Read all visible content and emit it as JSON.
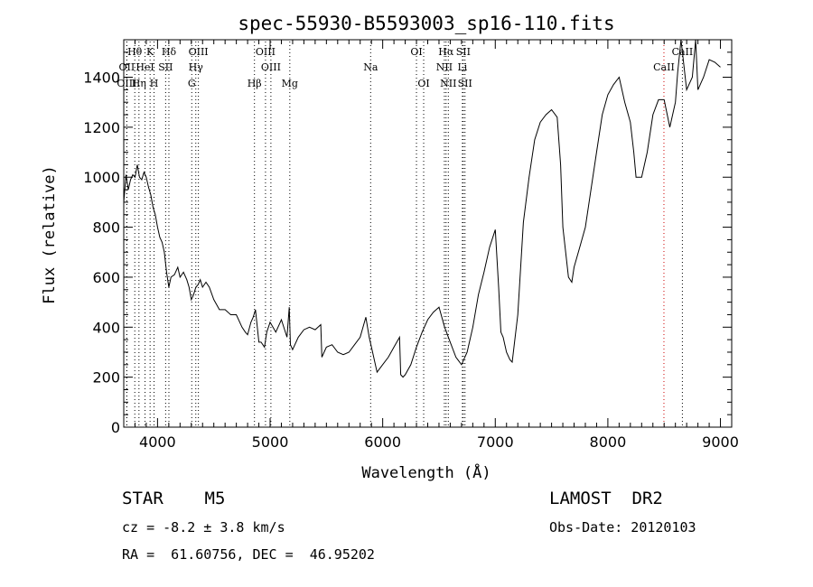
{
  "chart_data": {
    "type": "line",
    "title": "spec-55930-B5593003_sp16-110.fits",
    "xlabel": "Wavelength (Å)",
    "ylabel": "Flux (relative)",
    "xlim": [
      3700,
      9100
    ],
    "ylim": [
      0,
      1550
    ],
    "xticks": [
      4000,
      5000,
      6000,
      7000,
      8000,
      9000
    ],
    "yticks": [
      0,
      200,
      400,
      600,
      800,
      1000,
      1200,
      1400
    ],
    "grid": false,
    "series": [
      {
        "x": [
          3700,
          3720,
          3740,
          3760,
          3780,
          3800,
          3820,
          3840,
          3860,
          3880,
          3900,
          3920,
          3940,
          3960,
          3980,
          4000,
          4020,
          4040,
          4060,
          4080,
          4100,
          4120,
          4150,
          4180,
          4200,
          4230,
          4260,
          4280,
          4300,
          4320,
          4340,
          4360,
          4380,
          4400,
          4430,
          4460,
          4500,
          4550,
          4600,
          4650,
          4700,
          4750,
          4780,
          4800,
          4830,
          4850,
          4870,
          4900,
          4920,
          4950,
          4970,
          5000,
          5050,
          5100,
          5150,
          5170,
          5180,
          5200,
          5250,
          5300,
          5350,
          5400,
          5450,
          5460,
          5500,
          5550,
          5600,
          5650,
          5700,
          5750,
          5800,
          5850,
          5880,
          5900,
          5950,
          6000,
          6050,
          6100,
          6150,
          6160,
          6180,
          6200,
          6250,
          6300,
          6350,
          6400,
          6450,
          6500,
          6550,
          6600,
          6650,
          6700,
          6750,
          6800,
          6850,
          6900,
          6950,
          7000,
          7030,
          7050,
          7070,
          7100,
          7130,
          7150,
          7200,
          7250,
          7300,
          7350,
          7400,
          7450,
          7500,
          7550,
          7580,
          7600,
          7650,
          7680,
          7700,
          7750,
          7800,
          7850,
          7900,
          7950,
          8000,
          8050,
          8100,
          8150,
          8200,
          8230,
          8250,
          8300,
          8350,
          8400,
          8450,
          8500,
          8550,
          8600,
          8620,
          8650,
          8700,
          8750,
          8780,
          8800,
          8850,
          8900,
          8950,
          9000
        ],
        "y": [
          900,
          1010,
          950,
          990,
          1010,
          1000,
          1050,
          1000,
          990,
          1020,
          1000,
          960,
          930,
          880,
          850,
          800,
          760,
          740,
          700,
          620,
          560,
          600,
          610,
          640,
          600,
          620,
          590,
          560,
          510,
          530,
          560,
          570,
          590,
          560,
          580,
          560,
          510,
          470,
          470,
          450,
          450,
          400,
          380,
          370,
          420,
          440,
          470,
          340,
          340,
          320,
          380,
          420,
          380,
          430,
          360,
          480,
          330,
          310,
          360,
          390,
          400,
          390,
          410,
          280,
          320,
          330,
          300,
          290,
          300,
          330,
          360,
          440,
          360,
          320,
          220,
          250,
          280,
          320,
          360,
          210,
          200,
          210,
          250,
          320,
          380,
          430,
          460,
          480,
          400,
          340,
          280,
          250,
          300,
          400,
          530,
          620,
          720,
          790,
          560,
          380,
          360,
          300,
          270,
          260,
          450,
          820,
          1000,
          1150,
          1220,
          1250,
          1270,
          1240,
          1050,
          800,
          600,
          580,
          640,
          720,
          800,
          950,
          1100,
          1250,
          1330,
          1370,
          1400,
          1300,
          1220,
          1100,
          1000,
          1000,
          1100,
          1250,
          1310,
          1310,
          1200,
          1300,
          1420,
          1550,
          1350,
          1400,
          1550,
          1350,
          1400,
          1470,
          1460,
          1440
        ]
      }
    ],
    "lines": [
      {
        "label": "Hθ",
        "x": 3798,
        "row": 0,
        "color": "#000000"
      },
      {
        "label": "K",
        "x": 3934,
        "row": 0,
        "color": "#000000"
      },
      {
        "label": "Hδ",
        "x": 4101,
        "row": 0,
        "color": "#000000"
      },
      {
        "label": "OIII",
        "x": 4363,
        "row": 0,
        "color": "#000000"
      },
      {
        "label": "OIII",
        "x": 4959,
        "row": 0,
        "color": "#000000"
      },
      {
        "label": "OI",
        "x": 6300,
        "row": 0,
        "color": "#000000"
      },
      {
        "label": "Hα",
        "x": 6563,
        "row": 0,
        "color": "#000000"
      },
      {
        "label": "SII",
        "x": 6716,
        "row": 0,
        "color": "#000000"
      },
      {
        "label": "CaII",
        "x": 8662,
        "row": 0,
        "color": "#000000"
      },
      {
        "label": "OII",
        "x": 3727,
        "row": 1,
        "color": "#000000"
      },
      {
        "label": "HeI",
        "x": 3889,
        "row": 1,
        "color": "#000000"
      },
      {
        "label": "SII",
        "x": 4072,
        "row": 1,
        "color": "#000000"
      },
      {
        "label": "Hγ",
        "x": 4340,
        "row": 1,
        "color": "#000000"
      },
      {
        "label": "OIII",
        "x": 5007,
        "row": 1,
        "color": "#000000"
      },
      {
        "label": "Na",
        "x": 5893,
        "row": 1,
        "color": "#000000"
      },
      {
        "label": "NII",
        "x": 6548,
        "row": 1,
        "color": "#000000"
      },
      {
        "label": "Li",
        "x": 6708,
        "row": 1,
        "color": "#000000"
      },
      {
        "label": "CaII",
        "x": 8498,
        "row": 1,
        "color": "#cc0000"
      },
      {
        "label": "OIII",
        "x": 3727,
        "row": 2,
        "color": "#000000"
      },
      {
        "label": "Hη",
        "x": 3835,
        "row": 2,
        "color": "#000000"
      },
      {
        "label": "H",
        "x": 3969,
        "row": 2,
        "color": "#000000"
      },
      {
        "label": "G",
        "x": 4304,
        "row": 2,
        "color": "#000000"
      },
      {
        "label": "Hβ",
        "x": 4861,
        "row": 2,
        "color": "#000000"
      },
      {
        "label": "Mg",
        "x": 5175,
        "row": 2,
        "color": "#000000"
      },
      {
        "label": "OI",
        "x": 6364,
        "row": 2,
        "color": "#000000"
      },
      {
        "label": "NII",
        "x": 6583,
        "row": 2,
        "color": "#000000"
      },
      {
        "label": "SII",
        "x": 6731,
        "row": 2,
        "color": "#000000"
      }
    ],
    "line_colors": {
      "emission": "#cc0000",
      "absorption": "#000000"
    }
  },
  "info": {
    "object": "STAR    M5",
    "survey": "LAMOST  DR2",
    "cz": "cz = -8.2 ± 3.8 km/s",
    "obs_date": "Obs-Date: 20120103",
    "coords": "RA =  61.60756, DEC =  46.95202"
  }
}
